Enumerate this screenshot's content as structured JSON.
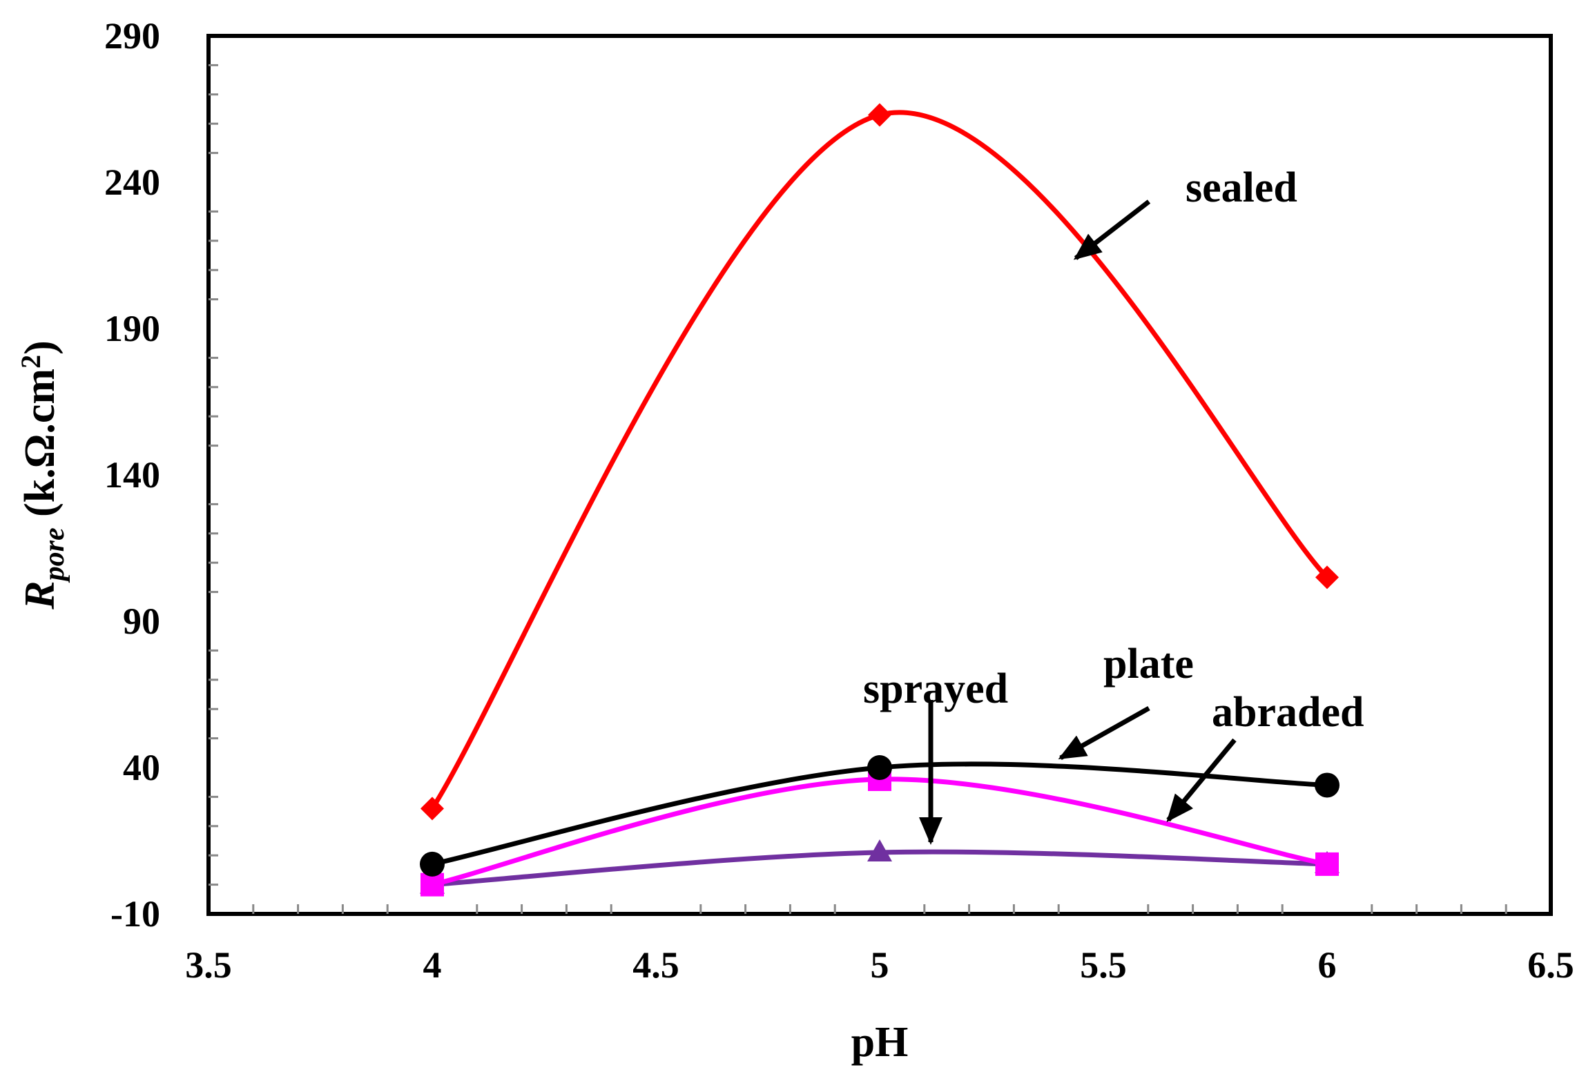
{
  "chart_data": {
    "type": "line",
    "title": "",
    "xlabel": "pH",
    "ylabel": {
      "main": "R",
      "subscript": "pore",
      "unit_prefix": " (k.Ω.cm",
      "unit_sup": "2",
      "unit_suffix": ")"
    },
    "xlim": [
      3.5,
      6.5
    ],
    "ylim": [
      -10,
      290
    ],
    "xticks": [
      3.5,
      4,
      4.5,
      5,
      5.5,
      6,
      6.5
    ],
    "xtick_labels": [
      "3.5",
      "4",
      "4.5",
      "5",
      "5.5",
      "6",
      "6.5"
    ],
    "yticks": [
      -10,
      40,
      90,
      140,
      190,
      240,
      290
    ],
    "ytick_labels": [
      "-10",
      "40",
      "90",
      "140",
      "190",
      "240",
      "290"
    ],
    "grid": false,
    "x": [
      4,
      5,
      6
    ],
    "series": [
      {
        "name": "sealed",
        "marker": "diamond",
        "color": "#ff0000",
        "values": [
          26,
          263,
          105
        ]
      },
      {
        "name": "plate",
        "marker": "circle",
        "color": "#000000",
        "values": [
          7,
          40,
          34
        ]
      },
      {
        "name": "abraded",
        "marker": "square",
        "color": "#ff00ff",
        "values": [
          0,
          36,
          7
        ]
      },
      {
        "name": "sprayed",
        "marker": "triangle",
        "color": "#7030a0",
        "values": [
          0,
          11,
          7
        ]
      }
    ],
    "annotations": [
      {
        "text": "sealed",
        "series": "sealed"
      },
      {
        "text": "plate",
        "series": "plate"
      },
      {
        "text": "abraded",
        "series": "abraded"
      },
      {
        "text": "sprayed",
        "series": "sprayed"
      }
    ]
  }
}
